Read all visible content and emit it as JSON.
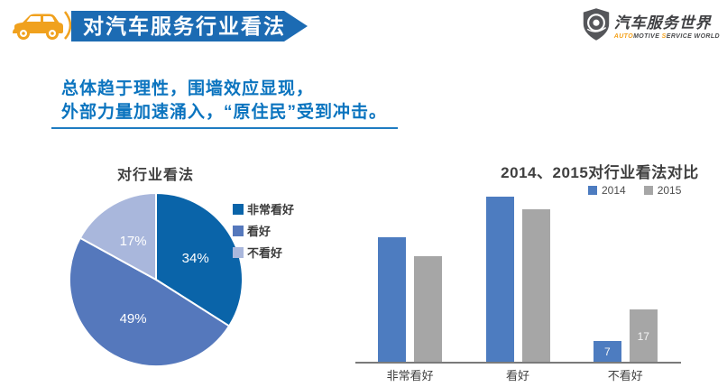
{
  "header": {
    "title": "对汽车服务行业看法",
    "banner_color": "#1c6bb3",
    "car_icon_color": "#f0a11e",
    "logo": {
      "cn": "汽车服务世界",
      "en_parts": [
        {
          "text": "AUTO",
          "color": "#f5a21b"
        },
        {
          "text": "MOTIVE ",
          "color": "#4a4b4d"
        },
        {
          "text": "S",
          "color": "#f5a21b"
        },
        {
          "text": "ERVICE WORLD",
          "color": "#4a4b4d"
        }
      ]
    }
  },
  "headline": {
    "line1": "总体趋于理性，围墙效应显现，",
    "line2": "外部力量加速涌入，“原住民”受到冲击。",
    "color": "#0b74bf"
  },
  "chart_data": [
    {
      "type": "pie",
      "title": "对行业看法",
      "labels": [
        "非常看好",
        "看好",
        "不看好"
      ],
      "values": [
        34,
        49,
        17
      ],
      "value_labels": [
        "34%",
        "49%",
        "17%"
      ],
      "colors": [
        "#0a64a9",
        "#5578bc",
        "#a9b7dc"
      ],
      "start_angle_deg_from_top": 0,
      "direction": "clockwise",
      "legend_position": "right"
    },
    {
      "type": "bar",
      "title": "2014、2015对行业看法对比",
      "categories": [
        "非常看好",
        "看好",
        "不看好"
      ],
      "series": [
        {
          "name": "2014",
          "color": "#4d7cc0",
          "values": [
            40,
            53,
            7
          ],
          "data_labels": [
            "",
            "",
            "7"
          ]
        },
        {
          "name": "2015",
          "color": "#a6a6a6",
          "values": [
            34,
            49,
            17
          ],
          "data_labels": [
            "",
            "",
            "17"
          ]
        }
      ],
      "ylim": [
        0,
        56
      ],
      "grid": false,
      "legend_position": "top-right",
      "axis_color": "#7a7a7a"
    }
  ]
}
